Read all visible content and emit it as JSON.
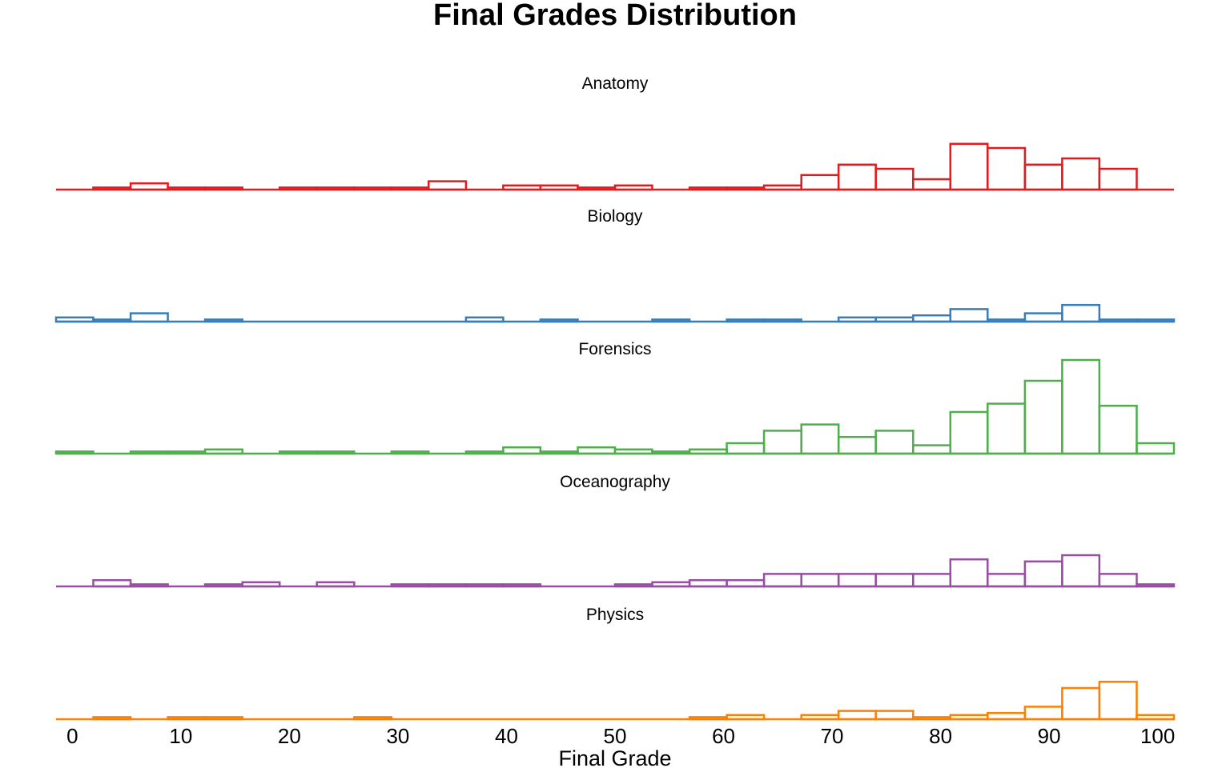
{
  "chart_data": {
    "type": "histogram",
    "title": "Final Grades Distribution",
    "xlabel": "Final Grade",
    "ylabel": "",
    "xlim": [
      -1.5,
      101.5
    ],
    "bin_edges": [
      -1.5,
      1.93,
      5.37,
      8.8,
      12.23,
      15.67,
      19.1,
      22.53,
      25.97,
      29.4,
      32.83,
      36.27,
      39.7,
      43.13,
      46.57,
      50.0,
      53.43,
      56.87,
      60.3,
      63.73,
      67.17,
      70.6,
      74.03,
      77.47,
      80.9,
      84.33,
      87.77,
      91.2,
      94.63,
      98.07,
      101.5
    ],
    "xticks": [
      0,
      10,
      20,
      30,
      40,
      50,
      60,
      70,
      80,
      90,
      100
    ],
    "tick_labels": [
      "0",
      "10",
      "20",
      "30",
      "40",
      "50",
      "60",
      "70",
      "80",
      "90",
      "100"
    ],
    "grid": false,
    "legend": "none",
    "panels": [
      {
        "name": "Anatomy",
        "color": "#e41a1c",
        "counts": [
          0,
          1,
          3,
          1,
          1,
          0,
          1,
          1,
          1,
          1,
          4,
          0,
          2,
          2,
          1,
          2,
          0,
          1,
          1,
          2,
          7,
          12,
          10,
          5,
          22,
          20,
          12,
          15,
          10,
          0
        ]
      },
      {
        "name": "Biology",
        "color": "#377eb8",
        "counts": [
          2,
          1,
          4,
          0,
          1,
          0,
          0,
          0,
          0,
          0,
          0,
          2,
          0,
          1,
          0,
          0,
          1,
          0,
          1,
          1,
          0,
          2,
          2,
          3,
          6,
          1,
          4,
          8,
          1,
          1
        ]
      },
      {
        "name": "Forensics",
        "color": "#4daf4a",
        "counts": [
          1,
          0,
          1,
          1,
          2,
          0,
          1,
          1,
          0,
          1,
          0,
          1,
          3,
          1,
          3,
          2,
          1,
          2,
          5,
          11,
          14,
          8,
          11,
          4,
          20,
          24,
          35,
          45,
          23,
          5
        ]
      },
      {
        "name": "Oceanography",
        "color": "#984ea3",
        "counts": [
          0,
          3,
          1,
          0,
          1,
          2,
          0,
          2,
          0,
          1,
          1,
          1,
          1,
          0,
          0,
          1,
          2,
          3,
          3,
          6,
          6,
          6,
          6,
          6,
          13,
          6,
          12,
          15,
          6,
          1
        ]
      },
      {
        "name": "Physics",
        "color": "#ff7f00",
        "counts": [
          0,
          1,
          0,
          1,
          1,
          0,
          0,
          0,
          1,
          0,
          0,
          0,
          0,
          0,
          0,
          0,
          0,
          1,
          2,
          0,
          2,
          4,
          4,
          1,
          2,
          3,
          6,
          15,
          18,
          2
        ]
      }
    ]
  }
}
